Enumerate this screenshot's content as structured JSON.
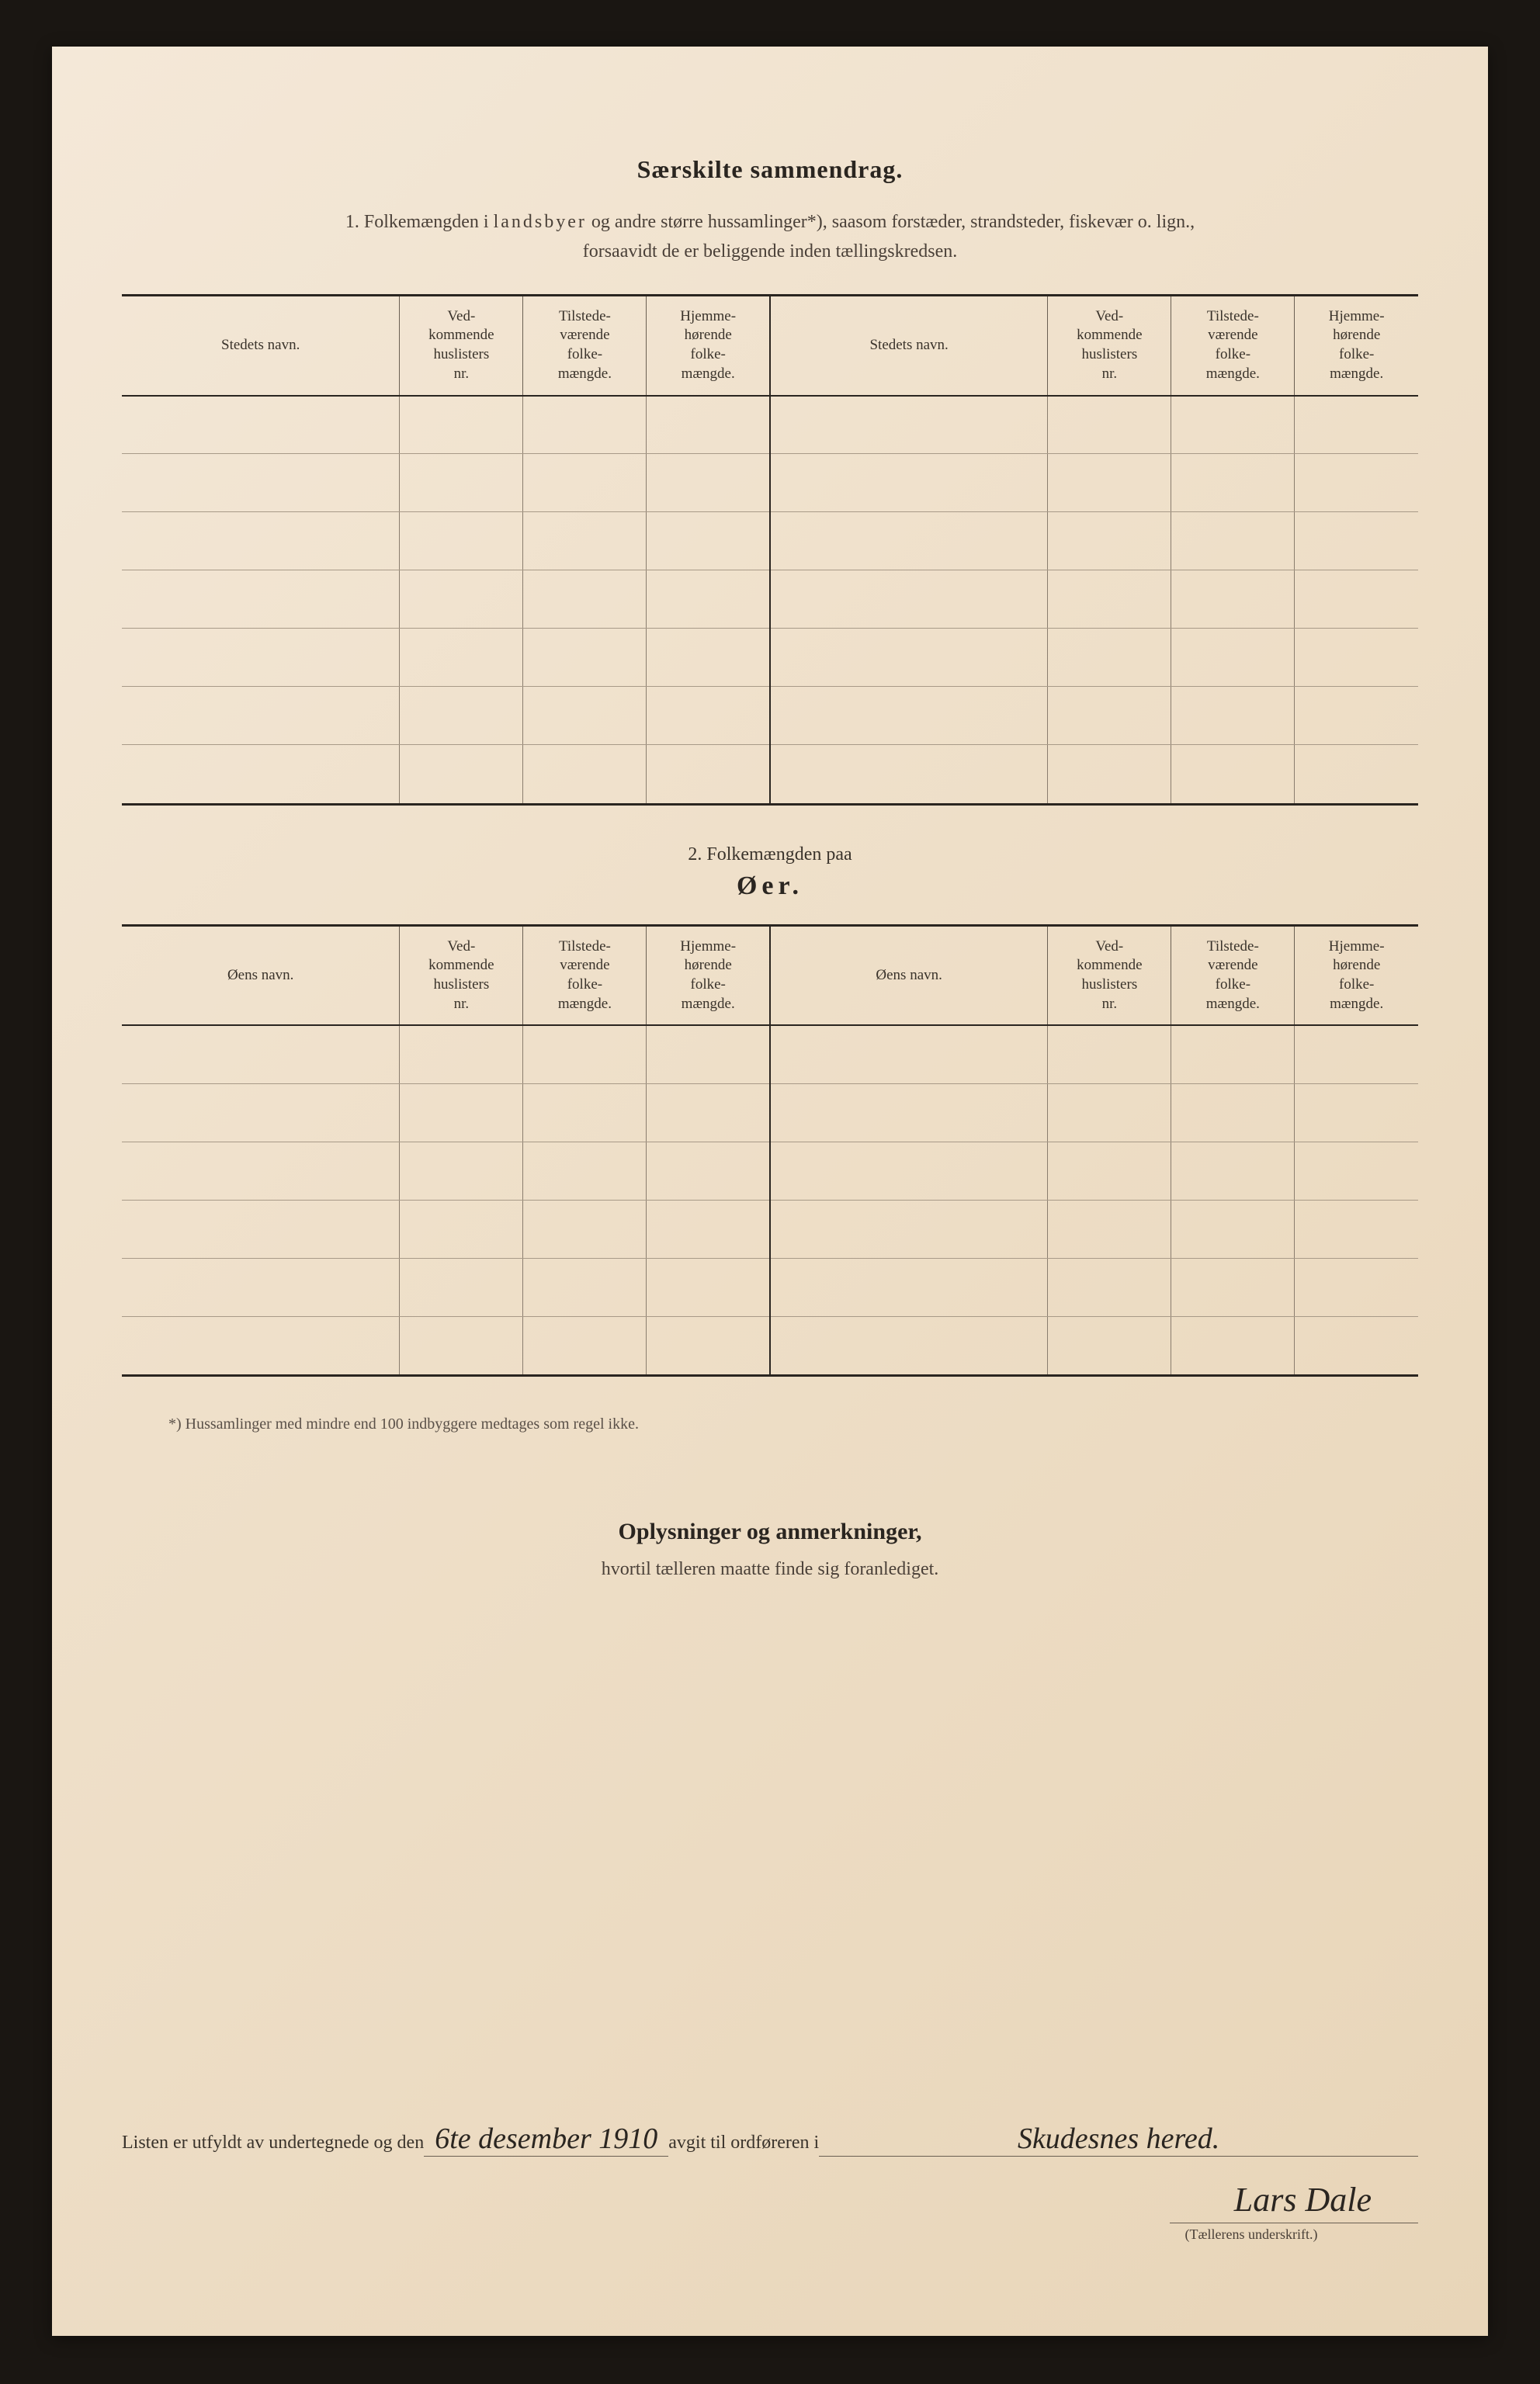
{
  "page": {
    "background_color": "#f0e3d0",
    "border_color": "#1a1612"
  },
  "section1": {
    "title": "Særskilte sammendrag.",
    "subtitle_prefix": "1.   Folkemængden i ",
    "subtitle_spaced": "landsbyer",
    "subtitle_rest": " og andre større hussamlinger*), saasom forstæder, strandsteder, fiskevær o. lign.,",
    "subtitle_line2": "forsaavidt de er beliggende inden tællingskredsen.",
    "headers": {
      "name": "Stedets navn.",
      "col2": "Ved-\nkommende\nhuslisters\nnr.",
      "col3": "Tilstede-\nværende\nfolke-\nmængde.",
      "col4": "Hjemme-\nhørende\nfolke-\nmængde."
    },
    "rows": 7
  },
  "section2": {
    "line1": "2.   Folkemængden paa",
    "line2": "Øer.",
    "headers": {
      "name": "Øens navn.",
      "col2": "Ved-\nkommende\nhuslisters\nnr.",
      "col3": "Tilstede-\nværende\nfolke-\nmængde.",
      "col4": "Hjemme-\nhørende\nfolke-\nmængde."
    },
    "rows": 6
  },
  "footnote": "*) Hussamlinger med mindre end 100 indbyggere medtages som regel ikke.",
  "oplysninger": {
    "title": "Oplysninger og anmerkninger,",
    "subtitle": "hvortil tælleren maatte finde sig foranlediget."
  },
  "signature": {
    "prefix": "Listen er utfyldt av undertegnede og den ",
    "date_value": "6te desember 1910",
    "middle": " avgit til ordføreren i ",
    "place_value": "Skudesnes hered.",
    "name": "Lars Dale",
    "caption": "(Tællerens underskrift.)"
  }
}
